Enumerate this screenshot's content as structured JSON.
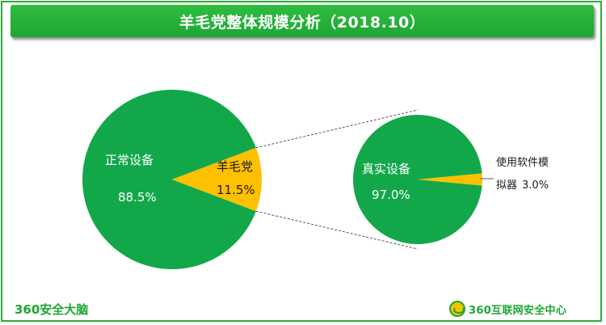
{
  "title": "羊毛党整体规模分析（2018.10）",
  "colors": {
    "green": "#12a84a",
    "yellow": "#ffc000",
    "brand": "#1ea633"
  },
  "chart_data": [
    {
      "type": "pie",
      "slices": [
        {
          "label": "正常设备",
          "value": 88.5,
          "value_label": "88.5%",
          "color": "#12a84a"
        },
        {
          "label": "羊毛党",
          "value": 11.5,
          "value_label": "11.5%",
          "color": "#ffc000"
        }
      ]
    },
    {
      "type": "pie",
      "slices": [
        {
          "label": "真实设备",
          "value": 97.0,
          "value_label": "97.0%",
          "color": "#12a84a"
        },
        {
          "label": "使用软件模拟器",
          "label_line1": "使用软件模",
          "label_line2": "拟器",
          "value": 3.0,
          "value_label": "3.0%",
          "color": "#ffc000"
        }
      ]
    }
  ],
  "footer": {
    "left_brand": "360安全大脑",
    "right_brand": "360互联网安全中心",
    "right_logo_icon": "360-logo-icon"
  }
}
